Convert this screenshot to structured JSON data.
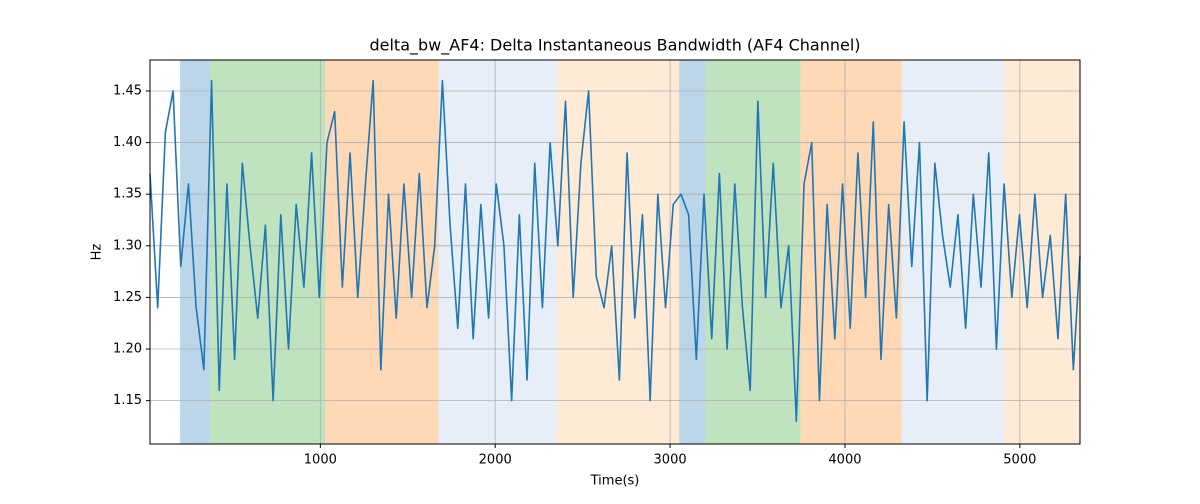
{
  "chart_data": {
    "type": "line",
    "title": "delta_bw_AF4: Delta Instantaneous Bandwidth (AF4 Channel)",
    "xlabel": "Time(s)",
    "ylabel": "Hz",
    "x": [
      26,
      70,
      114,
      158,
      202,
      246,
      290,
      334,
      378,
      422,
      466,
      510,
      554,
      598,
      642,
      686,
      730,
      774,
      818,
      862,
      906,
      950,
      994,
      1038,
      1082,
      1126,
      1170,
      1214,
      1258,
      1302,
      1346,
      1390,
      1434,
      1478,
      1522,
      1566,
      1610,
      1654,
      1698,
      1742,
      1786,
      1830,
      1874,
      1918,
      1962,
      2006,
      2050,
      2094,
      2138,
      2182,
      2226,
      2270,
      2314,
      2358,
      2402,
      2446,
      2490,
      2534,
      2578,
      2622,
      2666,
      2710,
      2754,
      2798,
      2842,
      2886,
      2930,
      2974,
      3018,
      3062,
      3106,
      3150,
      3194,
      3238,
      3282,
      3326,
      3370,
      3414,
      3458,
      3502,
      3546,
      3590,
      3634,
      3678,
      3722,
      3766,
      3810,
      3854,
      3898,
      3942,
      3986,
      4030,
      4074,
      4118,
      4162,
      4206,
      4250,
      4294,
      4338,
      4382,
      4426,
      4470,
      4514,
      4558,
      4602,
      4646,
      4690,
      4734,
      4778,
      4822,
      4866,
      4910,
      4954,
      4998,
      5042,
      5086,
      5130,
      5174,
      5218,
      5262,
      5306,
      5344
    ],
    "series": [
      {
        "color": "#1f77b4",
        "values": [
          1.37,
          1.24,
          1.41,
          1.45,
          1.28,
          1.36,
          1.24,
          1.18,
          1.46,
          1.16,
          1.36,
          1.19,
          1.38,
          1.3,
          1.23,
          1.32,
          1.15,
          1.33,
          1.2,
          1.34,
          1.26,
          1.39,
          1.25,
          1.4,
          1.43,
          1.26,
          1.39,
          1.25,
          1.36,
          1.46,
          1.18,
          1.35,
          1.23,
          1.36,
          1.25,
          1.37,
          1.24,
          1.3,
          1.46,
          1.32,
          1.22,
          1.36,
          1.21,
          1.34,
          1.23,
          1.36,
          1.3,
          1.15,
          1.33,
          1.17,
          1.38,
          1.24,
          1.4,
          1.3,
          1.44,
          1.25,
          1.38,
          1.45,
          1.27,
          1.24,
          1.3,
          1.17,
          1.39,
          1.23,
          1.33,
          1.15,
          1.35,
          1.24,
          1.34,
          1.35,
          1.33,
          1.19,
          1.35,
          1.21,
          1.37,
          1.2,
          1.36,
          1.24,
          1.16,
          1.44,
          1.25,
          1.38,
          1.24,
          1.3,
          1.13,
          1.36,
          1.4,
          1.15,
          1.34,
          1.21,
          1.36,
          1.22,
          1.39,
          1.25,
          1.42,
          1.19,
          1.34,
          1.23,
          1.42,
          1.28,
          1.4,
          1.15,
          1.38,
          1.31,
          1.26,
          1.33,
          1.22,
          1.35,
          1.26,
          1.39,
          1.2,
          1.36,
          1.25,
          1.33,
          1.24,
          1.35,
          1.25,
          1.31,
          1.21,
          1.35,
          1.18,
          1.29
        ]
      }
    ],
    "spans": [
      {
        "start": 198,
        "end": 370,
        "color": "#1f77b4"
      },
      {
        "start": 370,
        "end": 1029,
        "color": "#2ca02c"
      },
      {
        "start": 1029,
        "end": 1676,
        "color": "#ff7f0e"
      },
      {
        "start": 1676,
        "end": 2353,
        "color": "#aec7e8"
      },
      {
        "start": 2353,
        "end": 3052,
        "color": "#ffbb78"
      },
      {
        "start": 3052,
        "end": 3201,
        "color": "#1f77b4"
      },
      {
        "start": 3201,
        "end": 3745,
        "color": "#2ca02c"
      },
      {
        "start": 3745,
        "end": 4324,
        "color": "#ff7f0e"
      },
      {
        "start": 4324,
        "end": 4909,
        "color": "#aec7e8"
      },
      {
        "start": 4909,
        "end": 5344,
        "color": "#ffbb78"
      }
    ],
    "xlim": [
      26,
      5344
    ],
    "ylim": [
      1.108,
      1.48
    ],
    "xticks": [
      1000,
      2000,
      3000,
      4000,
      5000
    ],
    "yticks": [
      1.15,
      {
        "value": 1.2,
        "label": "1.20"
      },
      1.25,
      {
        "value": 1.3,
        "label": "1.30"
      },
      1.35,
      {
        "value": 1.4,
        "label": "1.40"
      },
      1.45
    ],
    "grid": true
  }
}
